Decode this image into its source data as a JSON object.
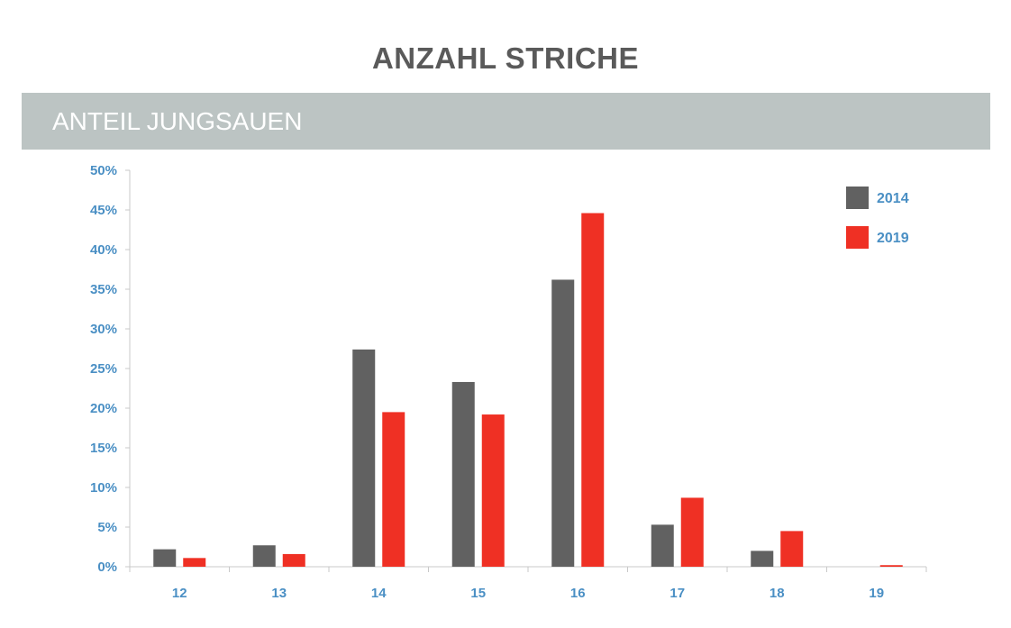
{
  "header": {
    "title": "ANZAHL STRICHE",
    "subtitle": "ANTEIL JUNGSAUEN"
  },
  "chart_data": {
    "type": "bar",
    "title": "ANZAHL STRICHE",
    "subtitle": "ANTEIL JUNGSAUEN",
    "xlabel": "",
    "ylabel": "",
    "categories": [
      "12",
      "13",
      "14",
      "15",
      "16",
      "17",
      "18",
      "19"
    ],
    "series": [
      {
        "name": "2014",
        "color": "#616161",
        "values": [
          2.2,
          2.7,
          27.4,
          23.3,
          36.2,
          5.3,
          2.0,
          0.0
        ]
      },
      {
        "name": "2019",
        "color": "#ef3024",
        "values": [
          1.1,
          1.6,
          19.5,
          19.2,
          44.6,
          8.7,
          4.5,
          0.2
        ]
      }
    ],
    "ylim": [
      0,
      50
    ],
    "yticks": [
      0,
      5,
      10,
      15,
      20,
      25,
      30,
      35,
      40,
      45,
      50
    ],
    "ytick_labels": [
      "0%",
      "5%",
      "10%",
      "15%",
      "20%",
      "25%",
      "30%",
      "35%",
      "40%",
      "45%",
      "50%"
    ],
    "grid": false,
    "legend_position": "top-right"
  }
}
